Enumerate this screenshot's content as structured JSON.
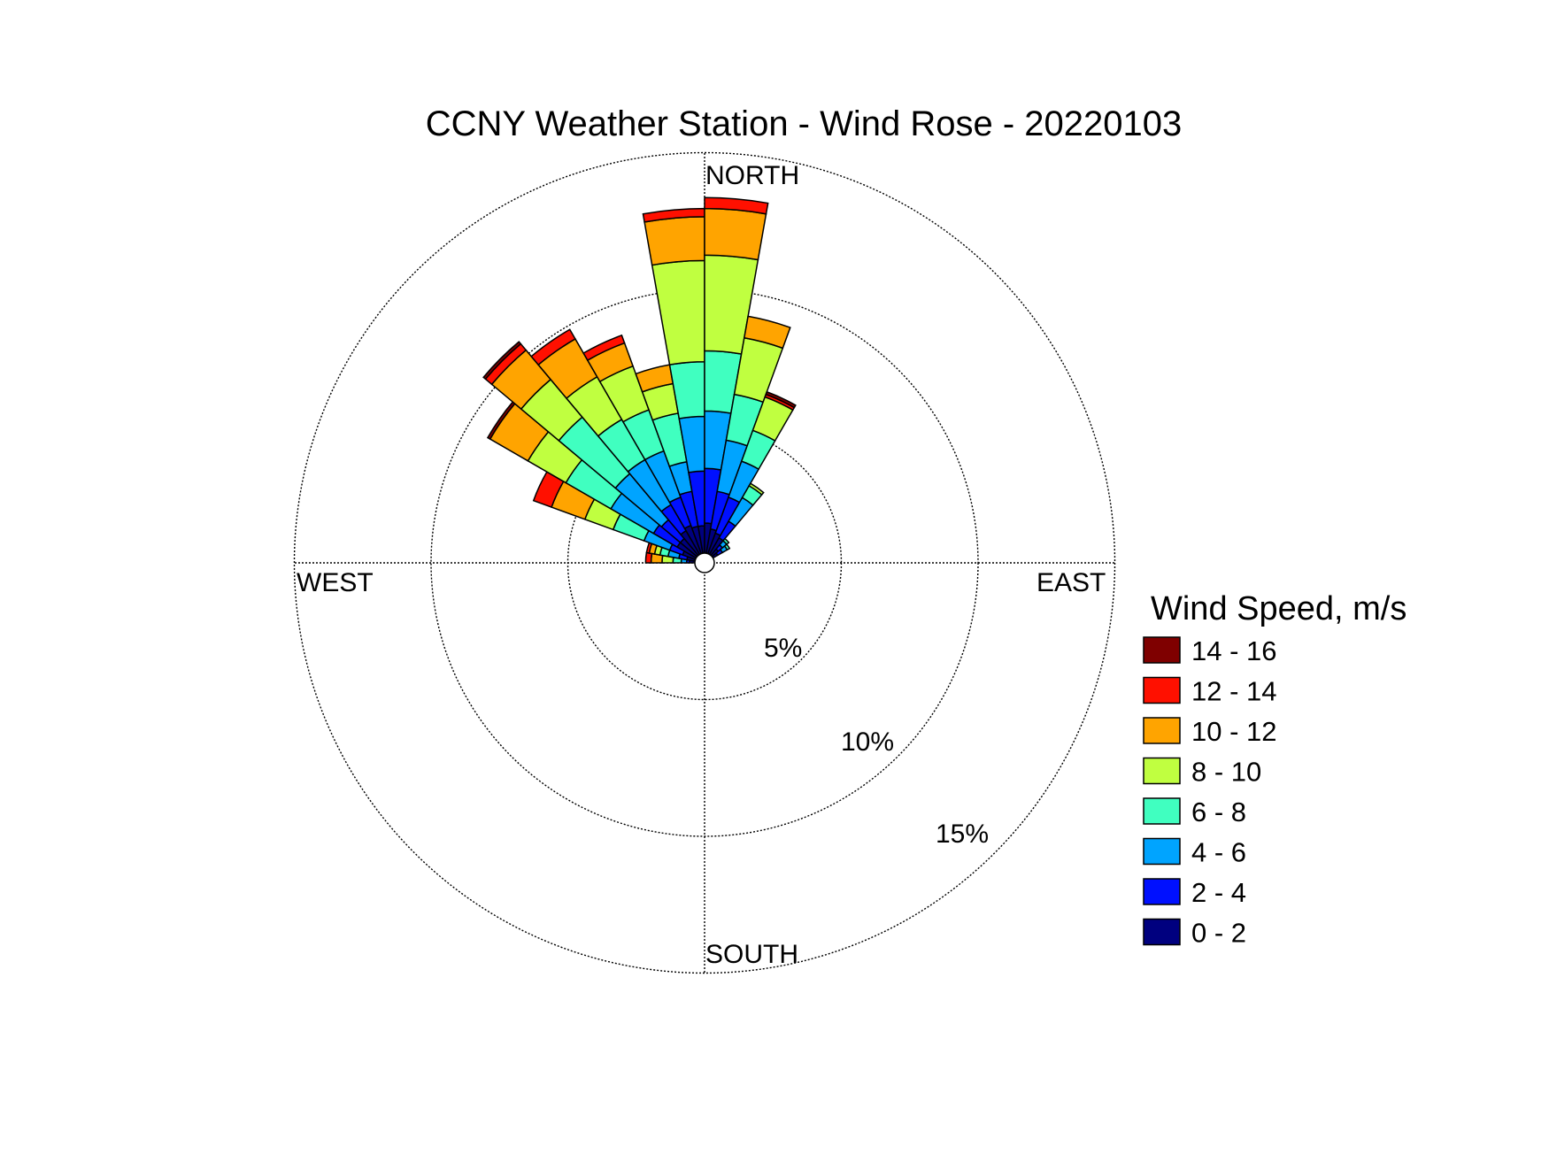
{
  "chart_data": {
    "type": "windrose",
    "title": "CCNY Weather Station - Wind Rose - 20220103",
    "directions": {
      "north": "NORTH",
      "east": "EAST",
      "south": "SOUTH",
      "west": "WEST"
    },
    "rings": [
      {
        "value": 5,
        "label": "5%"
      },
      {
        "value": 10,
        "label": "10%"
      },
      {
        "value": 15,
        "label": "15%"
      }
    ],
    "legend_title": "Wind Speed, m/s",
    "speed_bins": [
      {
        "label": "0 - 2",
        "color": "#00007f"
      },
      {
        "label": "2 - 4",
        "color": "#0010ff"
      },
      {
        "label": "4 - 6",
        "color": "#00a4ff"
      },
      {
        "label": "6 - 8",
        "color": "#40ffc0"
      },
      {
        "label": "8 - 10",
        "color": "#c0ff40"
      },
      {
        "label": "10 - 12",
        "color": "#ffa400"
      },
      {
        "label": "12 - 14",
        "color": "#ff1000"
      },
      {
        "label": "14 - 16",
        "color": "#7f0000"
      }
    ],
    "sector_width_deg": 10,
    "sectors": [
      {
        "direction_deg": 275,
        "cumulative": [
          0.2,
          0.3,
          0.5,
          0.8,
          1.2,
          1.6,
          1.8,
          1.8
        ]
      },
      {
        "direction_deg": 285,
        "cumulative": [
          0.3,
          0.6,
          1.0,
          1.3,
          1.5,
          1.7,
          1.8,
          1.8
        ]
      },
      {
        "direction_deg": 295,
        "cumulative": [
          0.5,
          1.0,
          2.0,
          3.2,
          4.3,
          5.6,
          6.3,
          6.3
        ]
      },
      {
        "direction_deg": 305,
        "cumulative": [
          0.8,
          1.8,
          3.6,
          5.5,
          7.1,
          8.7,
          8.7,
          8.8
        ]
      },
      {
        "direction_deg": 315,
        "cumulative": [
          0.8,
          1.7,
          3.9,
          6.6,
          8.4,
          9.8,
          10.1,
          10.2
        ]
      },
      {
        "direction_deg": 325,
        "cumulative": [
          1.0,
          2.1,
          4.0,
          5.7,
          7.5,
          9.1,
          9.5,
          9.5
        ]
      },
      {
        "direction_deg": 335,
        "cumulative": [
          1.1,
          2.2,
          4.0,
          5.6,
          7.3,
          8.2,
          8.5,
          8.5
        ]
      },
      {
        "direction_deg": 345,
        "cumulative": [
          1.0,
          2.3,
          3.4,
          5.2,
          6.3,
          7.0,
          7.0,
          7.0
        ]
      },
      {
        "direction_deg": 355,
        "cumulative": [
          1.0,
          3.0,
          5.0,
          7.0,
          10.7,
          12.3,
          12.6,
          12.6
        ]
      },
      {
        "direction_deg": 5,
        "cumulative": [
          1.1,
          3.1,
          5.2,
          7.4,
          10.9,
          12.6,
          13.0,
          13.0
        ]
      },
      {
        "direction_deg": 15,
        "cumulative": [
          0.9,
          2.3,
          4.2,
          5.9,
          8.0,
          8.8,
          8.8,
          8.8
        ]
      },
      {
        "direction_deg": 25,
        "cumulative": [
          0.8,
          2.2,
          3.6,
          4.8,
          6.1,
          6.1,
          6.2,
          6.3
        ]
      },
      {
        "direction_deg": 35,
        "cumulative": [
          0.7,
          1.4,
          2.4,
          2.9,
          3.0,
          3.0,
          3.0,
          3.0
        ]
      },
      {
        "direction_deg": 45,
        "cumulative": [
          0.3,
          0.5,
          0.7,
          0.8,
          0.8,
          0.8,
          0.8,
          0.8
        ]
      },
      {
        "direction_deg": 55,
        "cumulative": [
          0.2,
          0.4,
          0.6,
          0.7,
          0.7,
          0.7,
          0.7,
          0.7
        ]
      }
    ],
    "grid": true,
    "legend_position": "right"
  }
}
